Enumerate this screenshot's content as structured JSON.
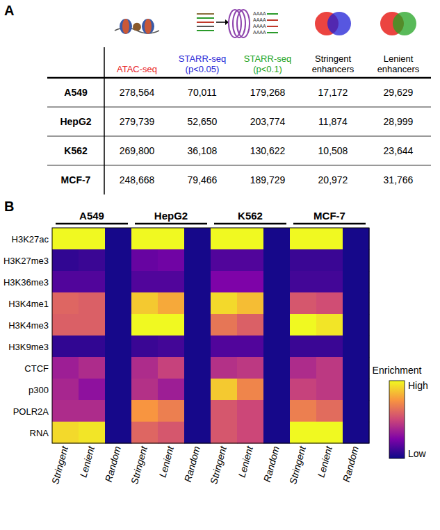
{
  "panel_letters": [
    "A",
    "B"
  ],
  "panel_a": {
    "starr_icon_text": "AAAA",
    "columns": [
      {
        "label": "ATAC-seq",
        "color": "#e8231f"
      },
      {
        "label": "STARR-seq (p<0.05)",
        "color": "#1f1fd6"
      },
      {
        "label": "STARR-seq (p<0.1)",
        "color": "#21a321"
      },
      {
        "label": "Stringent enhancers",
        "color": "#000000"
      },
      {
        "label": "Lenient enhancers",
        "color": "#000000"
      }
    ],
    "rows": [
      {
        "label": "A549",
        "cells": [
          "278,564",
          "70,011",
          "179,268",
          "17,172",
          "29,629"
        ]
      },
      {
        "label": "HepG2",
        "cells": [
          "279,739",
          "52,650",
          "203,774",
          "11,874",
          "28,999"
        ]
      },
      {
        "label": "K562",
        "cells": [
          "269,800",
          "36,108",
          "130,622",
          "10,508",
          "23,644"
        ]
      },
      {
        "label": "MCF-7",
        "cells": [
          "248,668",
          "79,466",
          "189,729",
          "20,972",
          "31,766"
        ]
      }
    ]
  },
  "chart_data": {
    "type": "heatmap",
    "groups": [
      "A549",
      "HepG2",
      "K562",
      "MCF-7"
    ],
    "categories": [
      "Stringent",
      "Lenient",
      "Random",
      "Stringent",
      "Lenient",
      "Random",
      "Stringent",
      "Lenient",
      "Random",
      "Stringent",
      "Lenient",
      "Random"
    ],
    "rows": [
      "H3K27ac",
      "H3K27me3",
      "H3K36me3",
      "H3K4me1",
      "H3K4me3",
      "H3K9me3",
      "CTCF",
      "p300",
      "POLR2A",
      "RNA"
    ],
    "values": [
      [
        1,
        1,
        0.02,
        1,
        1,
        0.02,
        1,
        1,
        0.02,
        1,
        1,
        0.02
      ],
      [
        0.08,
        0.1,
        0.02,
        0.2,
        0.22,
        0.02,
        0.15,
        0.15,
        0.02,
        0.1,
        0.1,
        0.02
      ],
      [
        0.15,
        0.15,
        0.02,
        0.15,
        0.15,
        0.02,
        0.25,
        0.25,
        0.02,
        0.12,
        0.12,
        0.02
      ],
      [
        0.6,
        0.58,
        0.02,
        0.88,
        0.8,
        0.02,
        0.92,
        0.85,
        0.02,
        0.55,
        0.52,
        0.02
      ],
      [
        0.58,
        0.58,
        0.02,
        1,
        1,
        0.02,
        0.65,
        0.58,
        0.02,
        1,
        0.95,
        0.02
      ],
      [
        0.08,
        0.08,
        0.02,
        0.1,
        0.12,
        0.02,
        0.15,
        0.15,
        0.02,
        0.1,
        0.1,
        0.02
      ],
      [
        0.35,
        0.4,
        0.02,
        0.4,
        0.48,
        0.02,
        0.42,
        0.45,
        0.02,
        0.4,
        0.45,
        0.02
      ],
      [
        0.38,
        0.3,
        0.02,
        0.42,
        0.35,
        0.02,
        0.88,
        0.7,
        0.02,
        0.48,
        0.45,
        0.02
      ],
      [
        0.4,
        0.4,
        0.02,
        0.75,
        0.68,
        0.02,
        0.55,
        0.5,
        0.02,
        0.68,
        0.62,
        0.02
      ],
      [
        0.92,
        0.95,
        0.02,
        0.6,
        0.55,
        0.02,
        0.55,
        0.5,
        0.02,
        1,
        1,
        0.02
      ]
    ],
    "colorbar": {
      "title": "Enrichment",
      "range": [
        0,
        1
      ],
      "ticks": [
        {
          "value": 1,
          "label": "High"
        },
        {
          "value": 0,
          "label": "Low"
        }
      ]
    }
  }
}
